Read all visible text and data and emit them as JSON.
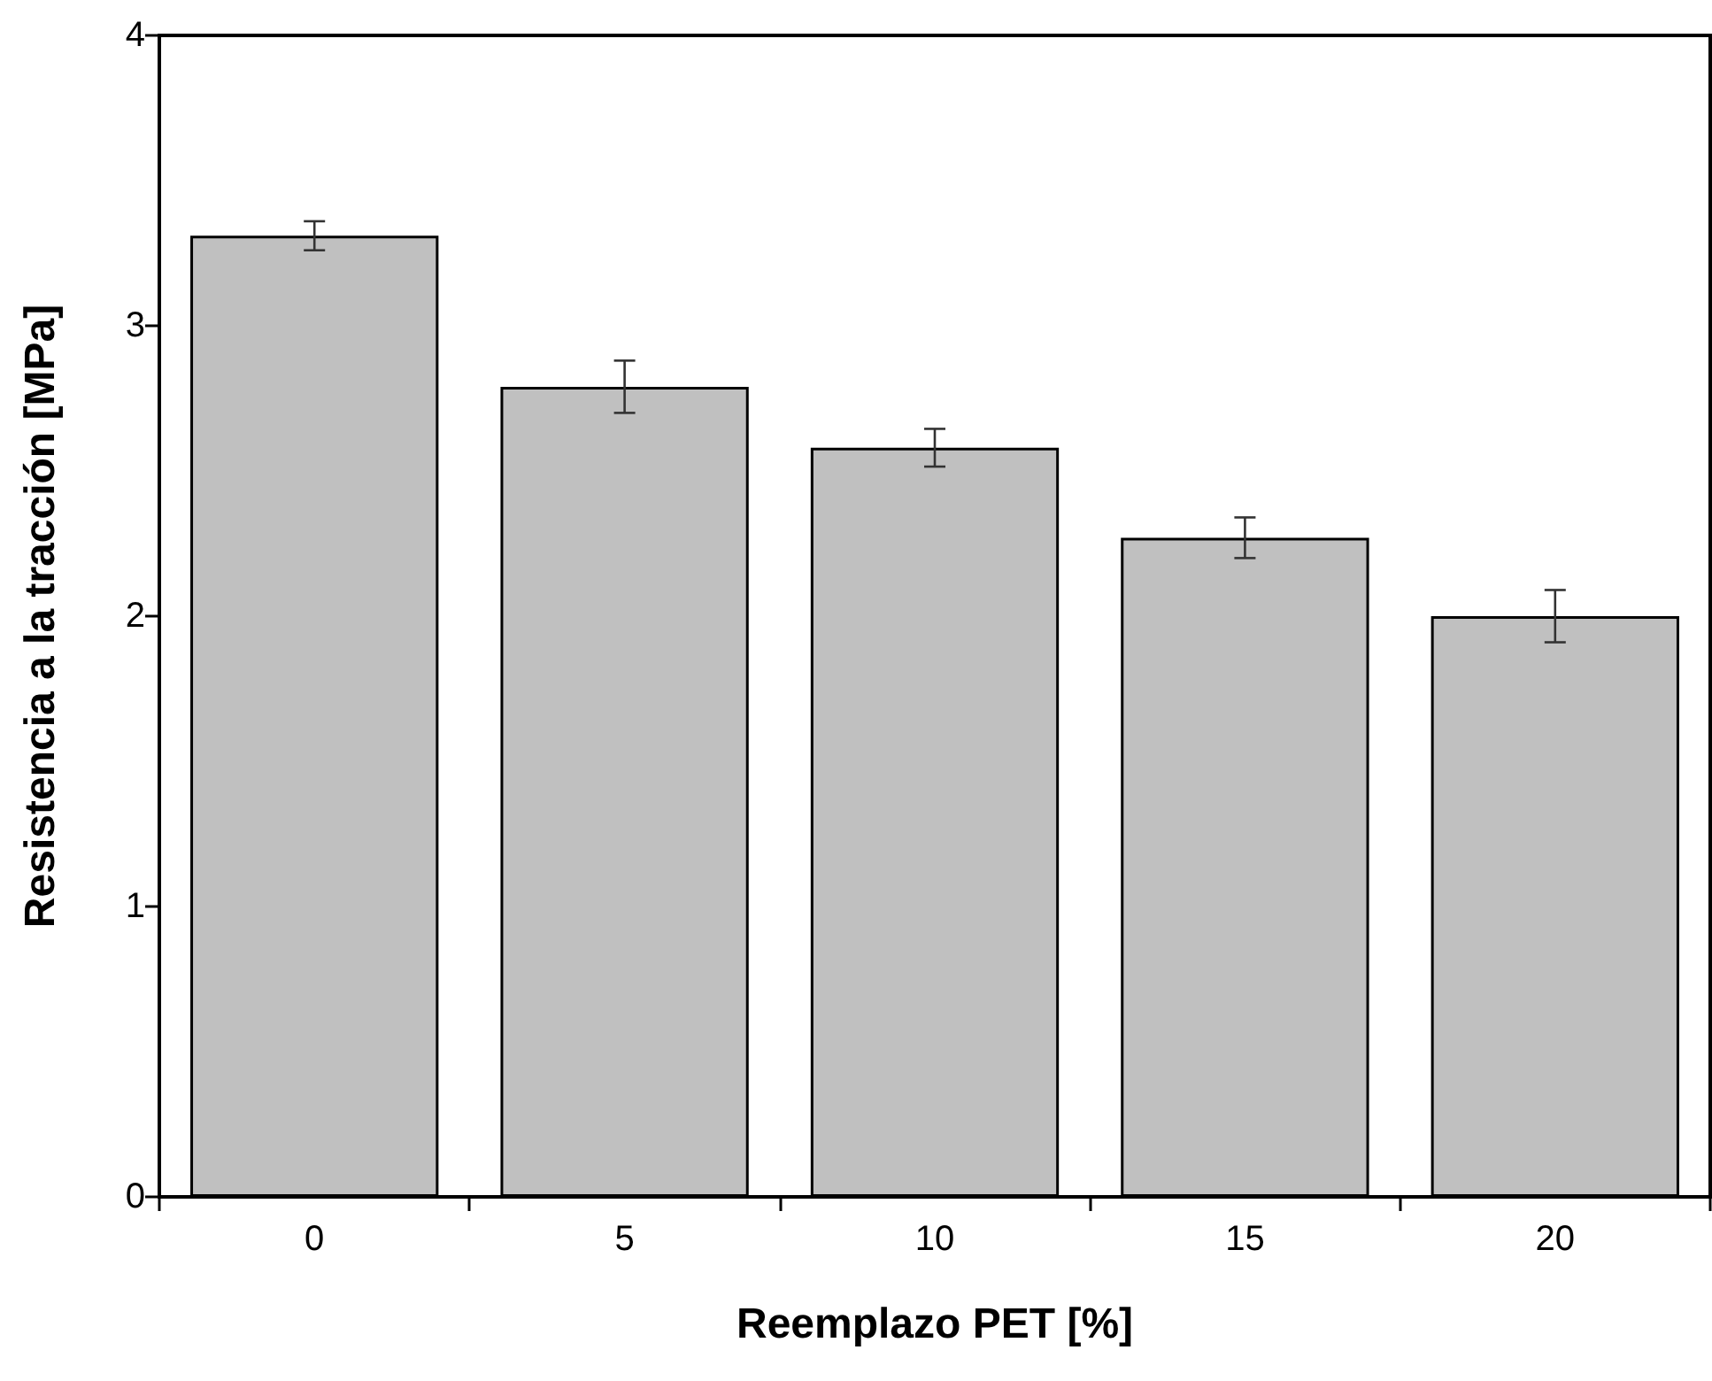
{
  "chart_data": {
    "type": "bar",
    "xlabel": "Reemplazo PET [%]",
    "ylabel": "Resistencia a la tracción [MPa]",
    "categories": [
      "0",
      "5",
      "10",
      "15",
      "20"
    ],
    "values": [
      3.31,
      2.79,
      2.58,
      2.27,
      2.0
    ],
    "errors": [
      0.05,
      0.09,
      0.065,
      0.07,
      0.09
    ],
    "color": "#c0c0c0",
    "ylim": [
      0,
      4
    ],
    "yticks": [
      0,
      1,
      2,
      3,
      4
    ]
  }
}
